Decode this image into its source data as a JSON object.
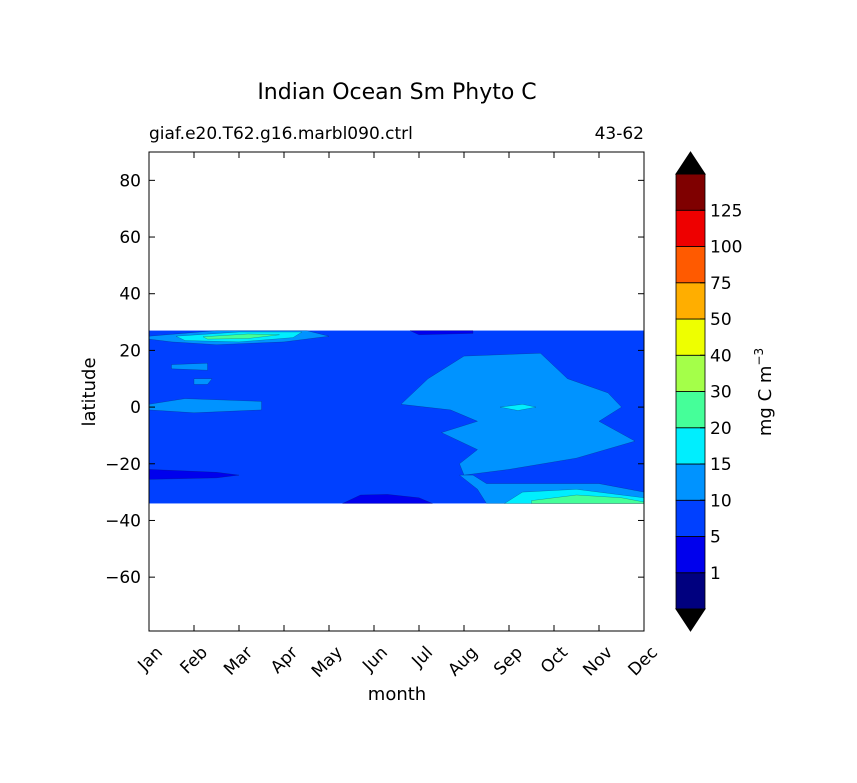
{
  "chart_data": {
    "type": "heatmap",
    "title": "Indian Ocean Sm Phyto C",
    "subtitle_left": "giaf.e20.T62.g16.marbl090.ctrl",
    "subtitle_right": "43-62",
    "xlabel": "month",
    "ylabel": "latitude",
    "x_ticks": [
      "Jan",
      "Feb",
      "Mar",
      "Apr",
      "May",
      "Jun",
      "Jul",
      "Aug",
      "Sep",
      "Oct",
      "Nov",
      "Dec"
    ],
    "x_range": [
      0,
      11
    ],
    "y_ticks": [
      80,
      60,
      40,
      20,
      0,
      -20,
      -40,
      -60
    ],
    "y_tick_labels": [
      "80",
      "60",
      "40",
      "20",
      "0",
      "−20",
      "−40",
      "−60"
    ],
    "ylim": [
      -79,
      90
    ],
    "data_lat_range": [
      -34,
      27
    ],
    "colorbar": {
      "label": "mg C m",
      "label_sup": "−3",
      "levels": [
        0,
        1,
        5,
        10,
        15,
        20,
        30,
        40,
        50,
        75,
        100,
        125,
        150
      ],
      "tick_values": [
        1,
        5,
        10,
        15,
        20,
        30,
        40,
        50,
        75,
        100,
        125
      ],
      "tick_labels": [
        "1",
        "5",
        "10",
        "15",
        "20",
        "30",
        "40",
        "50",
        "75",
        "100",
        "125"
      ],
      "colors": [
        "#00007f",
        "#0000ed",
        "#0040ff",
        "#0093ff",
        "#00eefe",
        "#45ff99",
        "#a4ff49",
        "#eeff00",
        "#ffae00",
        "#ff5a00",
        "#ee0000",
        "#7f0000"
      ],
      "extend_colors": [
        "#000000",
        "#000000"
      ]
    },
    "base_level_color": "#0040ff",
    "regions": [
      {
        "level": "10-15",
        "color": "#0093ff",
        "desc": "Jan–Apr north band",
        "points": [
          [
            0,
            25
          ],
          [
            1.5,
            27
          ],
          [
            3.5,
            27
          ],
          [
            4,
            25
          ],
          [
            3,
            23
          ],
          [
            1.5,
            22
          ],
          [
            0.5,
            23
          ],
          [
            0,
            24
          ]
        ]
      },
      {
        "level": "15-20",
        "color": "#00eefe",
        "desc": "Feb–Apr north patch",
        "points": [
          [
            0.6,
            25
          ],
          [
            2,
            26.5
          ],
          [
            3.4,
            26.5
          ],
          [
            3.2,
            24.5
          ],
          [
            2,
            23
          ],
          [
            0.8,
            23.5
          ]
        ]
      },
      {
        "level": "20-30",
        "color": "#45ff99",
        "desc": "Feb–Mar north core",
        "points": [
          [
            1.2,
            24.8
          ],
          [
            2.2,
            25.8
          ],
          [
            2.9,
            25.5
          ],
          [
            2.2,
            24.2
          ],
          [
            1.3,
            24
          ]
        ]
      },
      {
        "level": "10-15",
        "color": "#0093ff",
        "desc": "small north-central blob",
        "points": [
          [
            0.5,
            15
          ],
          [
            1.3,
            15.5
          ],
          [
            1.3,
            13
          ],
          [
            0.5,
            13.5
          ]
        ]
      },
      {
        "level": "10-15",
        "color": "#0093ff",
        "desc": "Feb small blob",
        "points": [
          [
            1,
            10
          ],
          [
            1.4,
            10
          ],
          [
            1.3,
            8
          ],
          [
            1,
            8
          ]
        ]
      },
      {
        "level": "10-15",
        "color": "#0093ff",
        "desc": "Jan–Feb equatorial",
        "points": [
          [
            0,
            1
          ],
          [
            0.8,
            3
          ],
          [
            2.5,
            2
          ],
          [
            2.5,
            -1
          ],
          [
            1,
            -2
          ],
          [
            0,
            -1
          ]
        ]
      },
      {
        "level": "10-15",
        "color": "#0093ff",
        "desc": "Aug–Dec equatorial/south",
        "points": [
          [
            5.6,
            1
          ],
          [
            6.2,
            10
          ],
          [
            7,
            18
          ],
          [
            8.7,
            19
          ],
          [
            9.3,
            10
          ],
          [
            10.2,
            5
          ],
          [
            10.5,
            0
          ],
          [
            10,
            -5
          ],
          [
            10.8,
            -12
          ],
          [
            9.5,
            -18
          ],
          [
            8,
            -22
          ],
          [
            7,
            -24
          ],
          [
            6.9,
            -20
          ],
          [
            7.3,
            -15
          ],
          [
            6.5,
            -9
          ],
          [
            7.3,
            -5
          ],
          [
            6.7,
            -1
          ]
        ]
      },
      {
        "level": "15-20",
        "color": "#00eefe",
        "desc": "Sep equatorial small",
        "points": [
          [
            7.8,
            0
          ],
          [
            8.3,
            1
          ],
          [
            8.6,
            0
          ],
          [
            8.2,
            -1.2
          ]
        ]
      },
      {
        "level": "10-15",
        "color": "#0093ff",
        "desc": "Aug–Dec south band",
        "points": [
          [
            6.9,
            -24
          ],
          [
            7.3,
            -29
          ],
          [
            7.5,
            -34
          ],
          [
            11,
            -34
          ],
          [
            11,
            -30
          ],
          [
            10,
            -27
          ],
          [
            8.5,
            -27
          ],
          [
            7.5,
            -27
          ],
          [
            7.2,
            -24
          ]
        ]
      },
      {
        "level": "15-20",
        "color": "#00eefe",
        "desc": "Sep–Dec south edge",
        "points": [
          [
            7.9,
            -34
          ],
          [
            8.3,
            -30
          ],
          [
            9.5,
            -29
          ],
          [
            10.5,
            -31
          ],
          [
            11,
            -32
          ],
          [
            11,
            -34
          ]
        ]
      },
      {
        "level": "20-30",
        "color": "#45ff99",
        "desc": "Oct–Dec south core",
        "points": [
          [
            8.5,
            -33
          ],
          [
            9.5,
            -31
          ],
          [
            10.5,
            -32
          ],
          [
            11,
            -33.5
          ],
          [
            11,
            -34
          ],
          [
            8.5,
            -34
          ]
        ]
      },
      {
        "level": "1-5",
        "color": "#0000ed",
        "desc": "Jan south band",
        "points": [
          [
            0,
            -22
          ],
          [
            1.5,
            -23
          ],
          [
            2,
            -24
          ],
          [
            1.5,
            -25
          ],
          [
            0,
            -25.5
          ]
        ]
      },
      {
        "level": "1-5",
        "color": "#0000ed",
        "desc": "Jun south floor",
        "points": [
          [
            4.3,
            -34
          ],
          [
            4.7,
            -31
          ],
          [
            5.3,
            -30.8
          ],
          [
            6,
            -32
          ],
          [
            6.3,
            -34
          ]
        ]
      },
      {
        "level": "1-5",
        "color": "#0000ed",
        "desc": "Jul–Aug north top",
        "points": [
          [
            5.8,
            27
          ],
          [
            7.2,
            27
          ],
          [
            7.2,
            26
          ],
          [
            6,
            25.5
          ]
        ]
      }
    ]
  }
}
